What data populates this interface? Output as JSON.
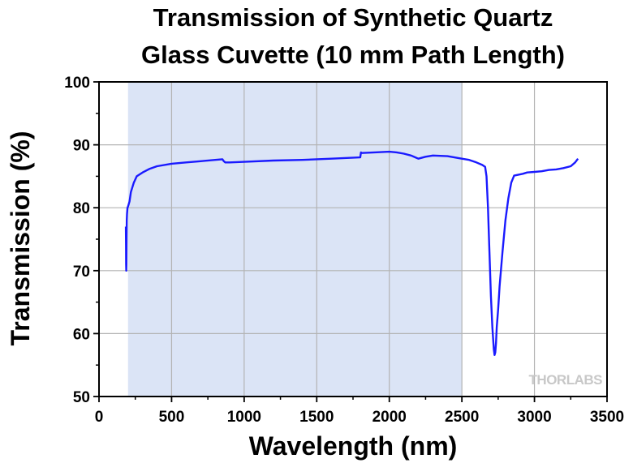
{
  "chart_data": {
    "type": "line",
    "title_lines": [
      "Transmission of Synthetic Quartz",
      "Glass Cuvette (10 mm Path Length)"
    ],
    "xlabel": "Wavelength (nm)",
    "ylabel": "Transmission (%)",
    "xlim": [
      0,
      3500
    ],
    "ylim": [
      50,
      100
    ],
    "x_ticks": [
      0,
      500,
      1000,
      1500,
      2000,
      2500,
      3000,
      3500
    ],
    "y_ticks": [
      50,
      60,
      70,
      80,
      90,
      100
    ],
    "grid": true,
    "highlight_band": {
      "x_range": [
        200,
        2500
      ],
      "color": "#dbe4f6"
    },
    "watermark": "THORLABS",
    "colors": {
      "line": "#1a1aff",
      "grid": "#b3b3b3",
      "axes": "#000000"
    },
    "series": [
      {
        "x": [
          185,
          186,
          187,
          188,
          189,
          190,
          191,
          193,
          196,
          200,
          210,
          220,
          240,
          260,
          300,
          350,
          400,
          500,
          600,
          700,
          800,
          850,
          860,
          870,
          900,
          1000,
          1200,
          1400,
          1600,
          1800,
          1805,
          1810,
          1900,
          2000,
          2050,
          2100,
          2150,
          2180,
          2200,
          2250,
          2300,
          2400,
          2500,
          2550,
          2600,
          2640,
          2660,
          2670,
          2680,
          2690,
          2700,
          2710,
          2720,
          2725,
          2730,
          2735,
          2740,
          2750,
          2760,
          2780,
          2800,
          2820,
          2840,
          2860,
          2880,
          2900,
          2920,
          2950,
          3000,
          3050,
          3100,
          3150,
          3200,
          3250,
          3280,
          3300
        ],
        "y": [
          77,
          74,
          71,
          70,
          71,
          75,
          78,
          79,
          80,
          80.2,
          81,
          82.5,
          84,
          85,
          85.6,
          86.2,
          86.6,
          87,
          87.2,
          87.4,
          87.6,
          87.7,
          87.4,
          87.2,
          87.2,
          87.3,
          87.5,
          87.6,
          87.8,
          88,
          88.8,
          88.7,
          88.8,
          88.9,
          88.8,
          88.6,
          88.3,
          88,
          87.8,
          88.1,
          88.3,
          88.2,
          87.8,
          87.6,
          87.2,
          86.8,
          86.5,
          85,
          80,
          73,
          66,
          61,
          57.5,
          56.6,
          57,
          58.5,
          61,
          64,
          67.5,
          73,
          78,
          81.5,
          84,
          85.1,
          85.2,
          85.3,
          85.4,
          85.6,
          85.7,
          85.8,
          86,
          86.1,
          86.3,
          86.6,
          87.2,
          87.8
        ]
      }
    ]
  }
}
